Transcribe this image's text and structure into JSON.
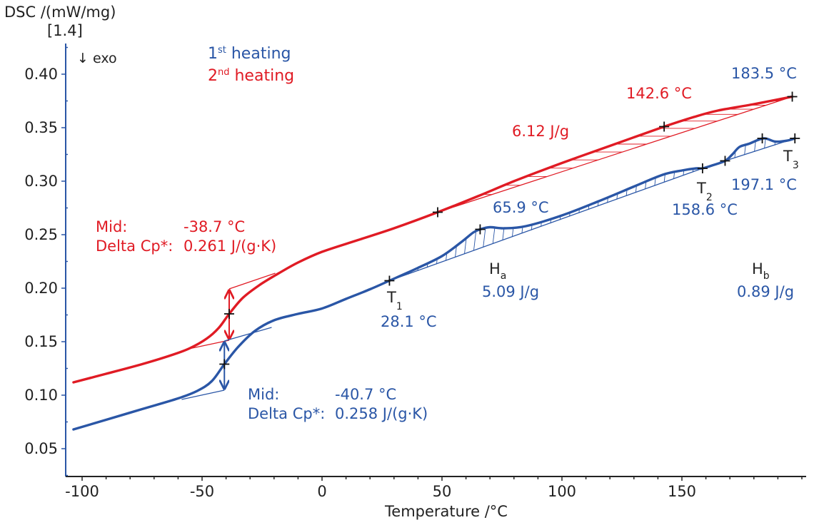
{
  "chart_data": {
    "type": "line",
    "title": "",
    "xlabel": "Temperature /°C",
    "ylabel": "DSC /(mW/mg)",
    "ylabel_extra": "[1.4]",
    "exo_label": "↓ exo",
    "xlim": [
      -107,
      200
    ],
    "ylim": [
      0.025,
      0.43
    ],
    "x_ticks": [
      -100,
      -50,
      0,
      50,
      100,
      150
    ],
    "x_tick_labels": [
      "-100",
      "-50",
      "0",
      "50",
      "100",
      "150"
    ],
    "x_minor_step": 10,
    "y_ticks": [
      0.05,
      0.1,
      0.15,
      0.2,
      0.25,
      0.3,
      0.35,
      0.4
    ],
    "y_tick_labels": [
      "0.05",
      "0.10",
      "0.15",
      "0.20",
      "0.25",
      "0.30",
      "0.35",
      "0.40"
    ],
    "y_minor_step": 0.025,
    "grid": false,
    "legend": {
      "placement": "top-left",
      "entries": [
        {
          "label_main": "1",
          "label_sup": "st",
          "label_rest": " heating",
          "color": "#2a56a6"
        },
        {
          "label_main": "2",
          "label_sup": "nd",
          "label_rest": " heating",
          "color": "#e01b24"
        }
      ]
    },
    "series": [
      {
        "name": "1st heating",
        "color": "#2a56a6",
        "x": [
          -103.6,
          -90,
          -75,
          -60,
          -52,
          -46,
          -40.7,
          -35,
          -28,
          -20,
          -10,
          0,
          10,
          20,
          28.1,
          40,
          50,
          58,
          63,
          65.9,
          70,
          76,
          85,
          100,
          115,
          130,
          142,
          150,
          156,
          158.6,
          163,
          168,
          171,
          174,
          178,
          184,
          189,
          194,
          197.1
        ],
        "y": [
          0.068,
          0.077,
          0.087,
          0.097,
          0.104,
          0.113,
          0.129,
          0.145,
          0.16,
          0.17,
          0.176,
          0.181,
          0.19,
          0.199,
          0.207,
          0.219,
          0.23,
          0.243,
          0.252,
          0.255,
          0.257,
          0.256,
          0.258,
          0.268,
          0.281,
          0.295,
          0.306,
          0.31,
          0.312,
          0.312,
          0.315,
          0.319,
          0.325,
          0.332,
          0.335,
          0.34,
          0.337,
          0.338,
          0.34
        ]
      },
      {
        "name": "2nd heating",
        "color": "#e01b24",
        "x": [
          -103.6,
          -90,
          -75,
          -62,
          -55,
          -48,
          -43,
          -38.7,
          -33,
          -26,
          -18,
          -10,
          0,
          15,
          30,
          48.2,
          65,
          80,
          100,
          120,
          142.6,
          155,
          165,
          180,
          196
        ],
        "y": [
          0.112,
          0.12,
          0.129,
          0.138,
          0.144,
          0.153,
          0.163,
          0.176,
          0.191,
          0.203,
          0.214,
          0.224,
          0.234,
          0.245,
          0.256,
          0.271,
          0.286,
          0.3,
          0.317,
          0.333,
          0.351,
          0.36,
          0.366,
          0.372,
          0.379
        ]
      }
    ],
    "glass_transitions": [
      {
        "series": "2nd heating",
        "color": "#e01b24",
        "mid_x": -38.7,
        "mid_y": 0.176,
        "upper_y": 0.1993,
        "lower_y": 0.1513,
        "lower_tangent_from": [
          -55.5,
          0.1433
        ],
        "upper_tangent_to": [
          -19.5,
          0.214
        ],
        "label_mid": "Mid:",
        "value_mid": "-38.7 °C",
        "label_cp": "Delta Cp*:",
        "value_cp": "0.261 J/(g·K)"
      },
      {
        "series": "1st heating",
        "color": "#2a56a6",
        "mid_x": -40.7,
        "mid_y": 0.129,
        "upper_y": 0.1507,
        "lower_y": 0.1047,
        "lower_tangent_from": [
          -58.5,
          0.096
        ],
        "upper_tangent_to": [
          -21,
          0.1633
        ],
        "label_mid": "Mid:",
        "value_mid": "-40.7 °C",
        "label_cp": "Delta Cp*:",
        "value_cp": "0.258 J/(g·K)"
      }
    ],
    "peaks": [
      {
        "series": "2nd heating",
        "color": "#e01b24",
        "start_x": 48.2,
        "start_y": 0.271,
        "end_x": 196,
        "end_y": 0.379,
        "peak_x": 142.6,
        "peak_y": 0.351,
        "peak_label": "142.6 °C",
        "area_label": "6.12 J/g"
      },
      {
        "series": "1st heating",
        "color": "#2a56a6",
        "start_x": 28.1,
        "start_y": 0.207,
        "end_x": 158.6,
        "end_y": 0.312,
        "peak_x": 65.9,
        "peak_y": 0.255,
        "peak_label": "65.9 °C",
        "area_name": "H",
        "area_sub": "a",
        "area_label": "5.09 J/g"
      },
      {
        "series": "1st heating",
        "color": "#2a56a6",
        "start_x": 168,
        "start_y": 0.319,
        "end_x": 197.1,
        "end_y": 0.34,
        "peak_x": 183.5,
        "peak_y": 0.34,
        "peak_label": "183.5 °C",
        "area_name": "H",
        "area_sub": "b",
        "area_label": "0.89 J/g"
      }
    ],
    "markers": [
      {
        "name": "T",
        "sub": "1",
        "x": 28.1,
        "y": 0.207,
        "value": "28.1 °C"
      },
      {
        "name": "T",
        "sub": "2",
        "x": 158.6,
        "y": 0.312,
        "value": "158.6 °C"
      },
      {
        "name": "T",
        "sub": "3",
        "x": 197.1,
        "y": 0.34,
        "value": "197.1 °C"
      }
    ]
  }
}
